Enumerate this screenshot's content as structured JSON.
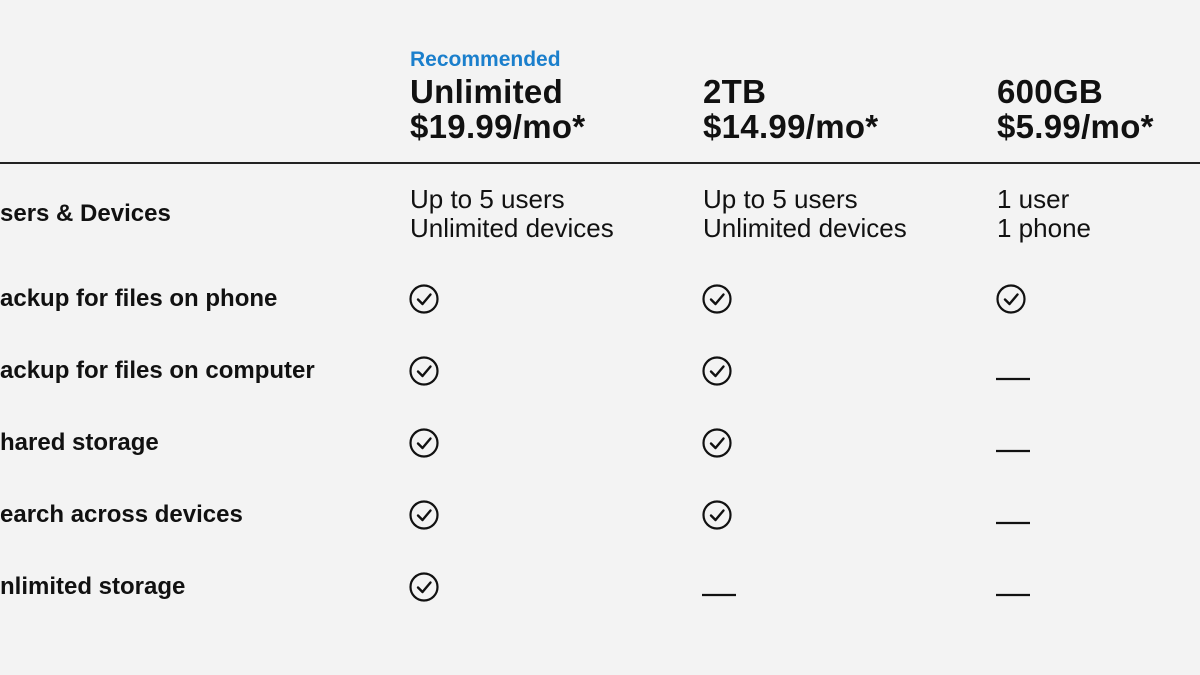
{
  "header": {
    "badge": "Recommended",
    "plans": [
      {
        "name": "Unlimited",
        "price": "$19.99/mo*"
      },
      {
        "name": "2TB",
        "price": "$14.99/mo*"
      },
      {
        "name": "600GB",
        "price": "$5.99/mo*"
      }
    ]
  },
  "rows": [
    {
      "label": "sers & Devices",
      "cells": [
        [
          "Up to 5 users",
          "Unlimited devices"
        ],
        [
          "Up to 5 users",
          "Unlimited devices"
        ],
        [
          "1 user",
          "1 phone"
        ]
      ]
    },
    {
      "label": "ackup for files on phone",
      "cells": [
        true,
        true,
        true
      ]
    },
    {
      "label": "ackup for files on computer",
      "cells": [
        true,
        true,
        false
      ]
    },
    {
      "label": "hared storage",
      "cells": [
        true,
        true,
        false
      ]
    },
    {
      "label": "earch across devices",
      "cells": [
        true,
        true,
        false
      ]
    },
    {
      "label": "nlimited storage",
      "cells": [
        true,
        false,
        false
      ]
    }
  ]
}
